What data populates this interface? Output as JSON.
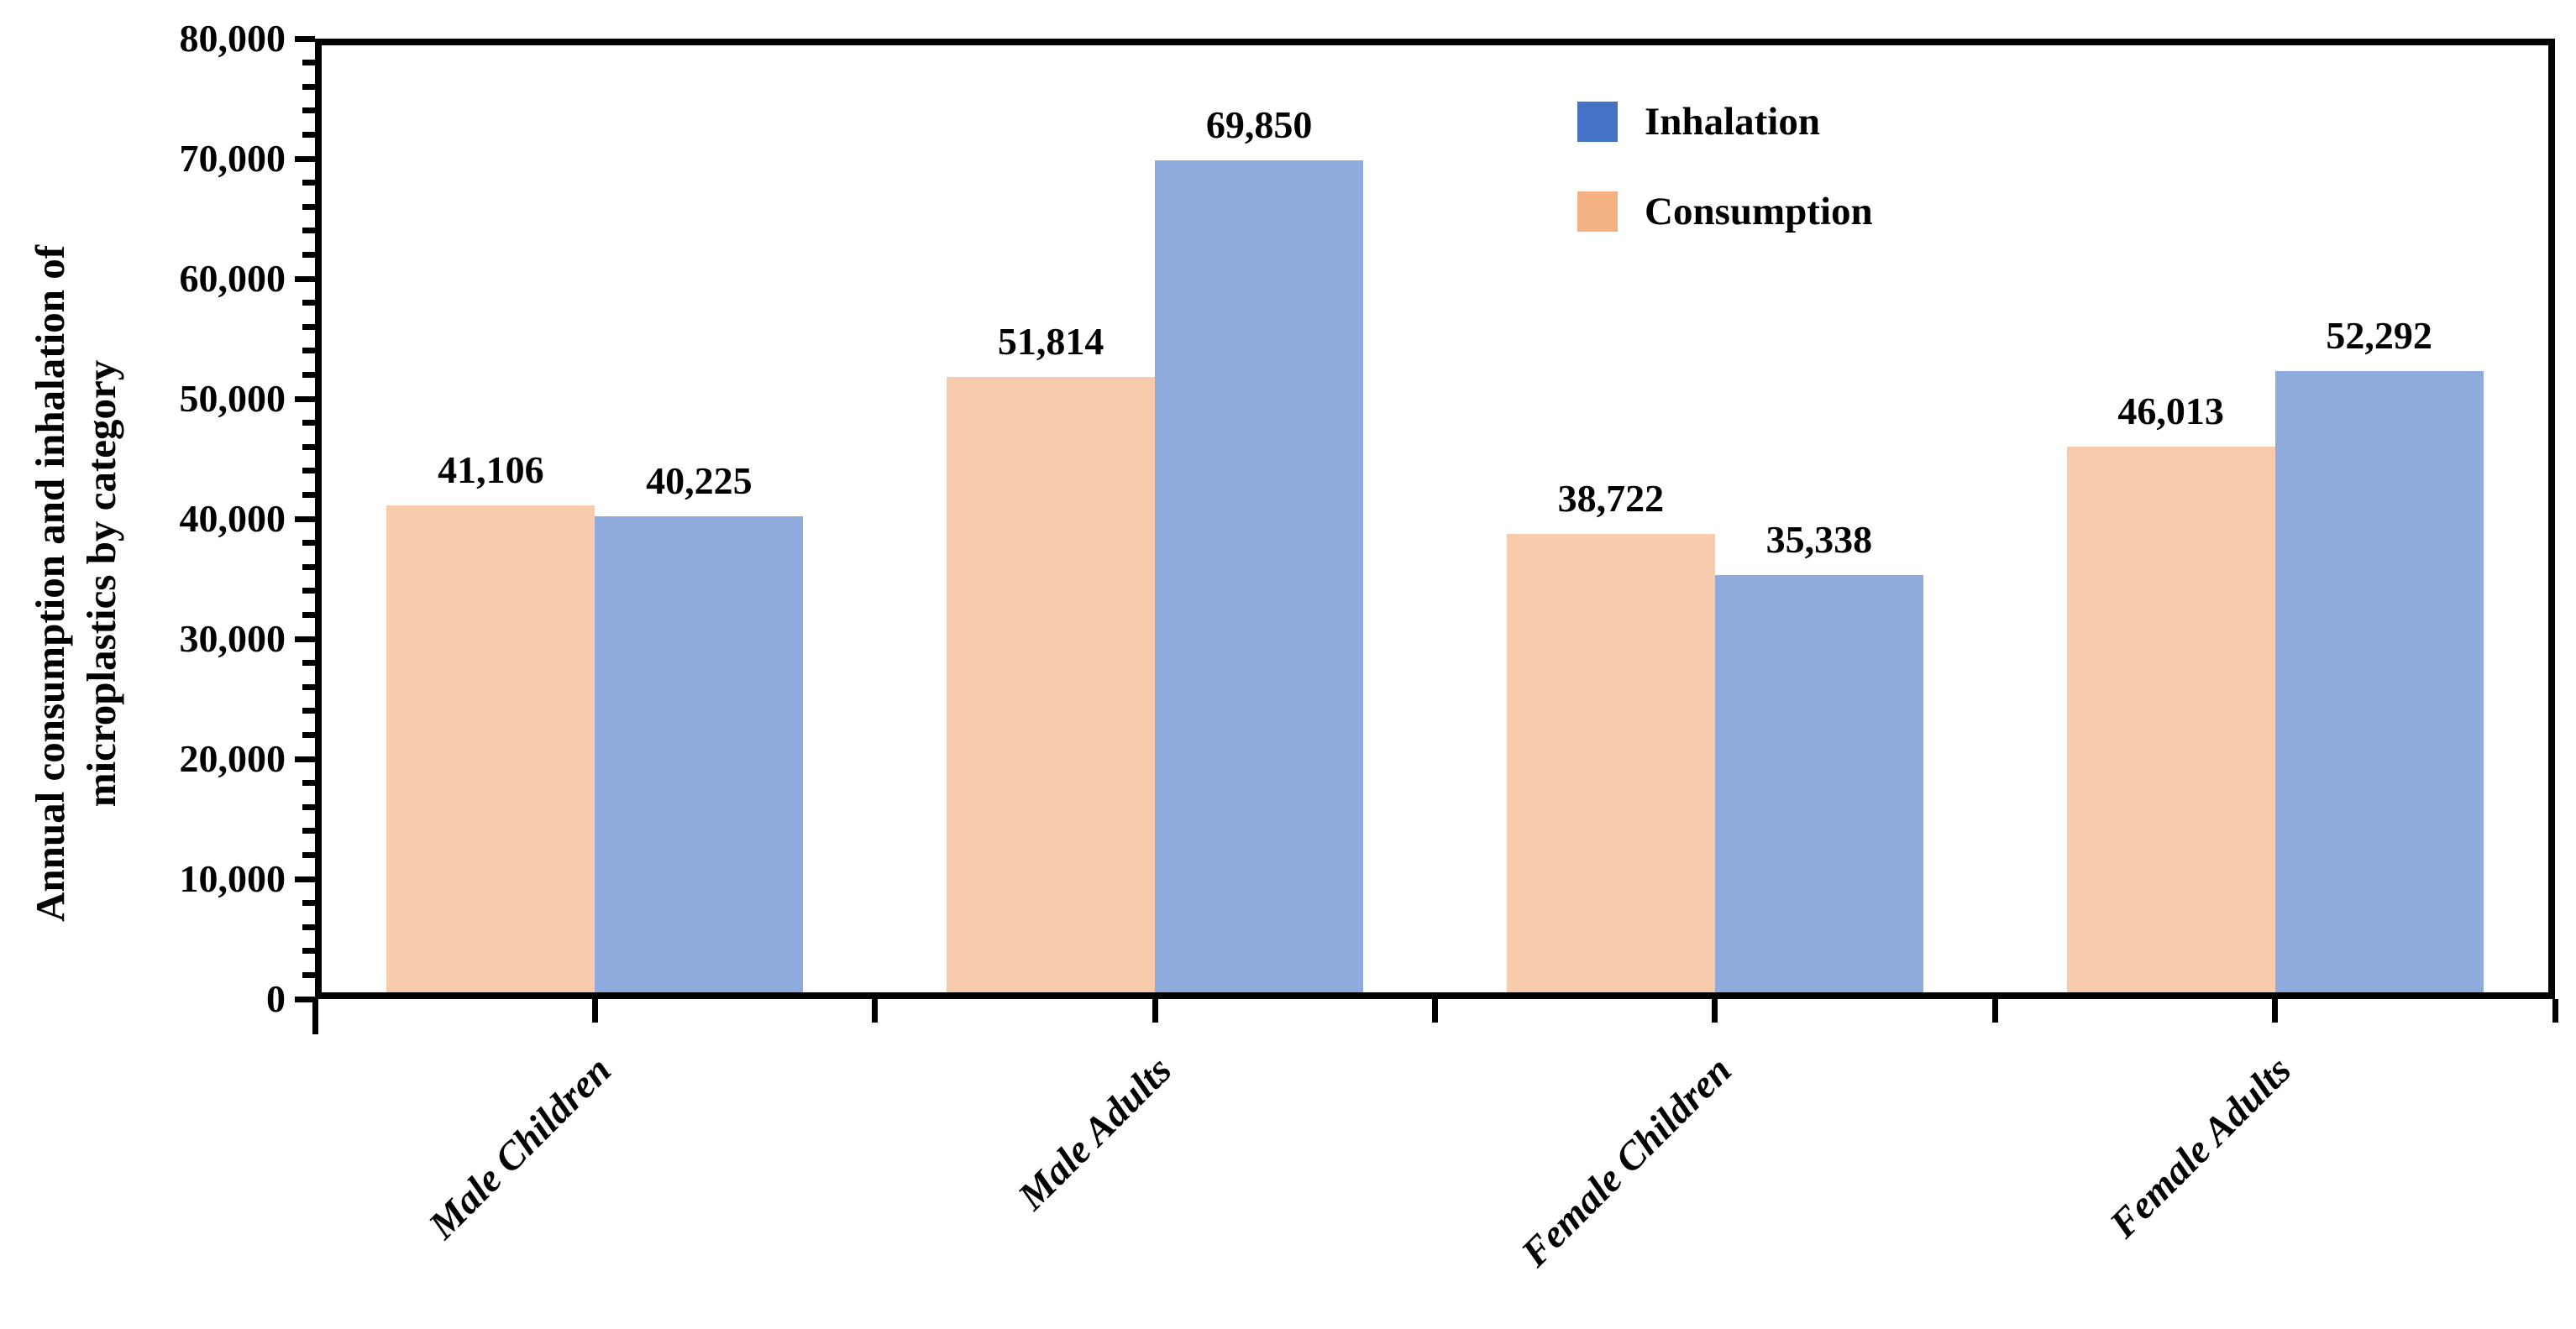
{
  "chart_data": {
    "type": "bar",
    "title": "",
    "categories": [
      "Male Children",
      "Male Adults",
      "Female Children",
      "Female Adults"
    ],
    "series": [
      {
        "name": "Consumption",
        "bar_color": "#F8CBAD",
        "values": [
          41106,
          51814,
          38722,
          46013
        ],
        "value_labels": [
          "41,106",
          "51,814",
          "38,722",
          "46,013"
        ]
      },
      {
        "name": "Inhalation",
        "bar_color": "#8FAADC",
        "values": [
          40225,
          69850,
          35338,
          52292
        ],
        "value_labels": [
          "40,225",
          "69,850",
          "35,338",
          "52,292"
        ]
      }
    ],
    "ylabel_line1": "Annual consumption and inhalation of",
    "ylabel_line2": "microplastics by category",
    "xlabel": "",
    "ylim": [
      0,
      80000
    ],
    "ytick_major_interval": 10000,
    "ytick_minor_interval": 2000,
    "ytick_labels": [
      "0",
      "10,000",
      "20,000",
      "30,000",
      "40,000",
      "50,000",
      "60,000",
      "70,000",
      "80,000"
    ],
    "grid": false,
    "plot_border": true,
    "axis_color": "#000000",
    "legend": {
      "position": "inside-top-right",
      "items": [
        {
          "label": "Inhalation",
          "color": "#4472C4"
        },
        {
          "label": "Consumption",
          "color": "#F4B183"
        }
      ]
    }
  }
}
